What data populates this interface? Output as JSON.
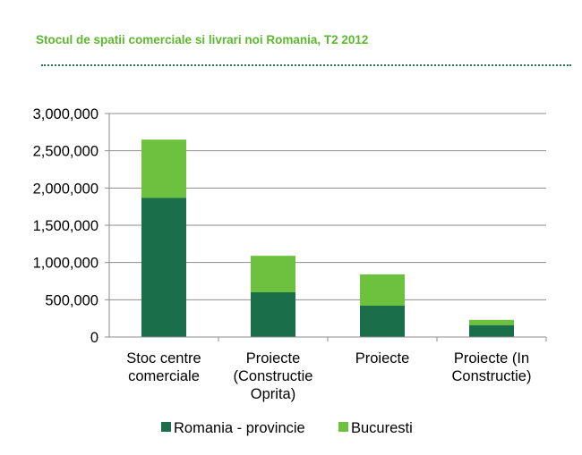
{
  "title": "Stocul de spatii comerciale si livrari noi Romania, T2 2012",
  "chart_data": {
    "type": "bar",
    "stacked": true,
    "categories": [
      [
        "Stoc centre",
        "comerciale"
      ],
      [
        "Proiecte",
        "(Constructie",
        "Oprita)"
      ],
      [
        "Proiecte"
      ],
      [
        "Proiecte (In",
        "Constructie)"
      ]
    ],
    "series": [
      {
        "name": "Romania - provincie",
        "color": "#1a6e4a",
        "values": [
          1870000,
          600000,
          420000,
          160000
        ]
      },
      {
        "name": "Bucuresti",
        "color": "#6cc13e",
        "values": [
          780000,
          490000,
          420000,
          70000
        ]
      }
    ],
    "y_ticks": [
      0,
      500000,
      1000000,
      1500000,
      2000000,
      2500000,
      3000000
    ],
    "y_tick_labels": [
      "0",
      "500,000",
      "1,000,000",
      "1,500,000",
      "2,000,000",
      "2,500,000",
      "3,000,000"
    ],
    "ylim": [
      0,
      3000000
    ],
    "grid": true,
    "legend_position": "bottom",
    "xlabel": "",
    "ylabel": ""
  }
}
